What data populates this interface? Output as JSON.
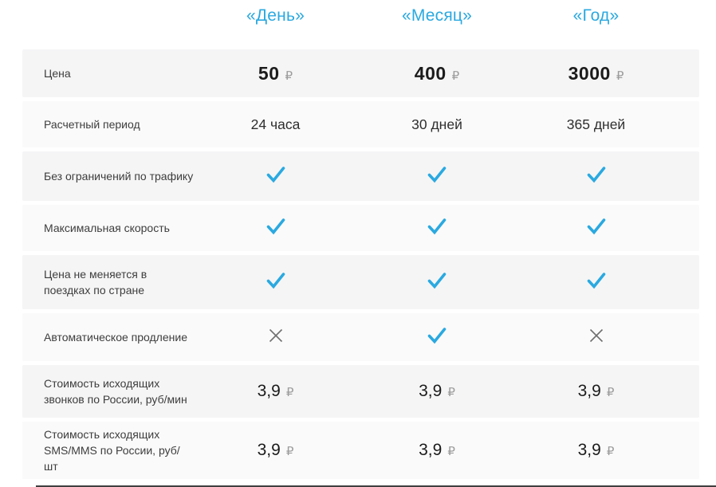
{
  "palette": {
    "accent": "#2aa9e0",
    "check": "#2aa9e0",
    "cross": "#6f6f6f",
    "row_odd_bg": "#f5f5f6",
    "row_even_bg": "#fafafa",
    "currency_gray": "#9b9b9b"
  },
  "header": {
    "columns": [
      "«День»",
      "«Месяц»",
      "«Год»"
    ]
  },
  "currency": "₽",
  "icons": {
    "check": "✓",
    "cross": "✕"
  },
  "rows": [
    {
      "label": "Цена",
      "type": "price",
      "values": [
        "50",
        "400",
        "3000"
      ]
    },
    {
      "label": "Расчетный период",
      "type": "text",
      "values": [
        "24 часа",
        "30 дней",
        "365 дней"
      ]
    },
    {
      "label": "Без ограничений по трафику",
      "type": "check",
      "values": [
        true,
        true,
        true
      ]
    },
    {
      "label": "Максимальная скорость",
      "type": "check",
      "values": [
        true,
        true,
        true
      ]
    },
    {
      "label": "Цена не меняется в поездках по стране",
      "type": "check",
      "values": [
        true,
        true,
        true
      ]
    },
    {
      "label": "Автоматическое продление",
      "type": "check",
      "values": [
        false,
        true,
        false
      ]
    },
    {
      "label": "Стоимость исходящих звонков по России, руб/мин",
      "type": "money",
      "values": [
        "3,9",
        "3,9",
        "3,9"
      ]
    },
    {
      "label": "Стоимость исходящих SMS/MMS по России, руб/шт",
      "type": "money",
      "values": [
        "3,9",
        "3,9",
        "3,9"
      ]
    }
  ]
}
